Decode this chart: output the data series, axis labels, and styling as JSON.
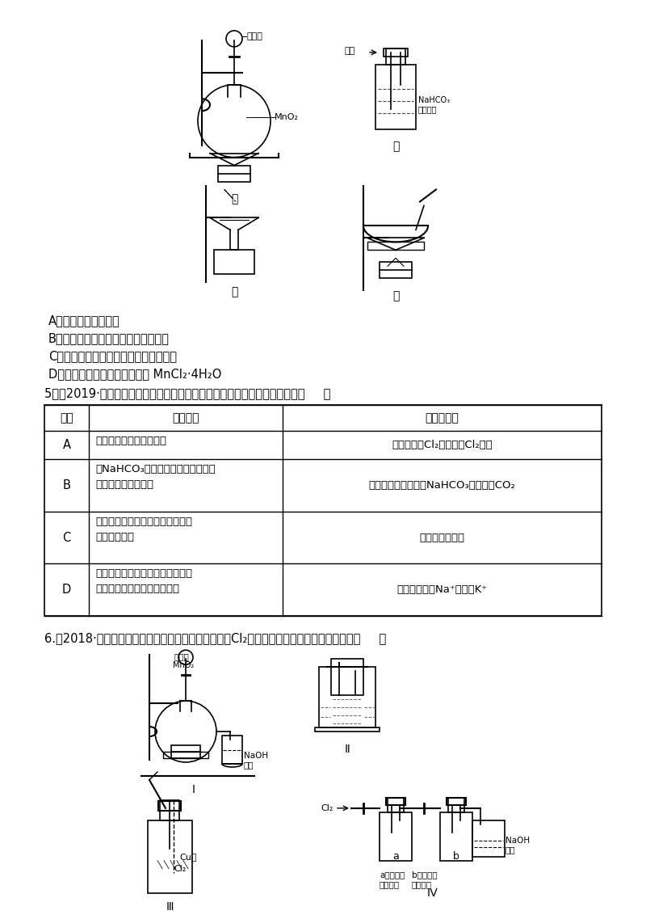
{
  "bg_color": "#ffffff",
  "text_color": "#000000",
  "options_A": "A．用装置甲制取氯气",
  "options_B": "B．用装置乙除去氯气中的少量氯化氢",
  "options_C": "C．用装置丙分离二氧化锰和氯化锰溶液",
  "options_D": "D．用装置丁蒸干氯化锰溶液制 MnCl₂·4H₂O",
  "q5_text": "5．（2019·泰州中学高三月考）下列有关实验现象与分析或结论都正确的是（     ）",
  "table_headers": [
    "选项",
    "实验现象",
    "分析或结论"
  ],
  "q6_text": "6.（2018·安徽师大附中期中）某同学用下列装置制备Cl₂并检验其性质。下列说法正确的是（     ）"
}
